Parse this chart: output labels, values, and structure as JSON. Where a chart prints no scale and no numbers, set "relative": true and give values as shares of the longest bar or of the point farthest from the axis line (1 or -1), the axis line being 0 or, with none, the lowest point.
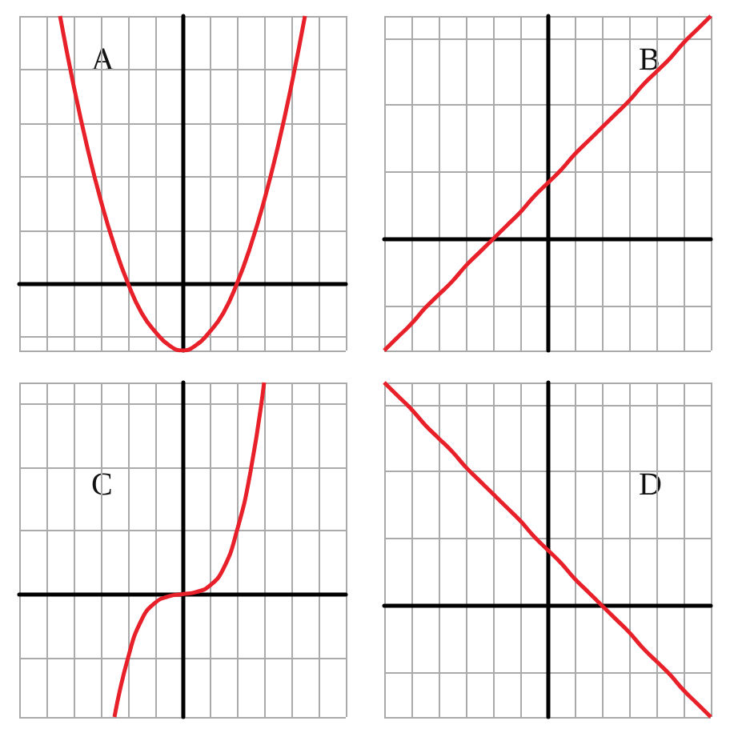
{
  "chart_data": [
    {
      "type": "line",
      "relative": true,
      "grid": true,
      "tick_labels": false,
      "marker": "none",
      "annotations": [
        "A"
      ],
      "categories": [
        null,
        null,
        null,
        null,
        null,
        null,
        null,
        null,
        null,
        null,
        null,
        null,
        null,
        null,
        null,
        null,
        null,
        null,
        null,
        null,
        null,
        null,
        null,
        null,
        null
      ],
      "series": [
        {
          "color": "#e8202a",
          "values": [
            null,
            null,
            null,
            1,
            0.74,
            0.51,
            0.31,
            0.14,
            0,
            -0.11,
            -0.18,
            -0.23,
            -0.25,
            -0.23,
            -0.18,
            -0.11,
            0,
            0.14,
            0.31,
            0.51,
            0.74,
            1,
            null,
            null,
            null
          ]
        }
      ]
    },
    {
      "type": "line",
      "relative": true,
      "grid": true,
      "tick_labels": false,
      "marker": "none",
      "annotations": [
        "B"
      ],
      "categories": [
        null,
        null,
        null,
        null,
        null,
        null,
        null,
        null,
        null,
        null,
        null,
        null,
        null,
        null,
        null,
        null,
        null,
        null,
        null,
        null,
        null,
        null,
        null,
        null,
        null
      ],
      "series": [
        {
          "color": "#e8202a",
          "values": [
            -0.5,
            -0.44,
            -0.38,
            -0.31,
            -0.25,
            -0.19,
            -0.12,
            -0.06,
            0,
            0.06,
            0.12,
            0.19,
            0.25,
            0.31,
            0.38,
            0.44,
            0.5,
            0.56,
            0.62,
            0.69,
            0.75,
            0.81,
            0.88,
            0.94,
            1
          ]
        }
      ]
    },
    {
      "type": "line",
      "relative": true,
      "grid": true,
      "tick_labels": false,
      "marker": "none",
      "annotations": [
        "C"
      ],
      "categories": [
        null,
        null,
        null,
        null,
        null,
        null,
        null,
        null,
        null,
        null,
        null,
        null,
        null,
        null,
        null,
        null,
        null,
        null,
        null,
        null,
        null,
        null,
        null,
        null,
        null
      ],
      "series": [
        {
          "color": "#e8202a",
          "values": [
            null,
            null,
            null,
            null,
            null,
            null,
            null,
            -0.58,
            -0.3,
            -0.12,
            -0.04,
            -0.01,
            0,
            0.01,
            0.04,
            0.12,
            0.3,
            0.58,
            1,
            null,
            null,
            null,
            null,
            null,
            null
          ]
        }
      ]
    },
    {
      "type": "line",
      "relative": true,
      "grid": true,
      "tick_labels": false,
      "marker": "none",
      "annotations": [
        "D"
      ],
      "categories": [
        null,
        null,
        null,
        null,
        null,
        null,
        null,
        null,
        null,
        null,
        null,
        null,
        null,
        null,
        null,
        null,
        null,
        null,
        null,
        null,
        null,
        null,
        null,
        null,
        null
      ],
      "series": [
        {
          "color": "#e8202a",
          "values": [
            1,
            0.94,
            0.88,
            0.81,
            0.75,
            0.69,
            0.62,
            0.56,
            0.5,
            0.44,
            0.38,
            0.31,
            0.25,
            0.19,
            0.12,
            0.06,
            0,
            -0.06,
            -0.12,
            -0.19,
            -0.25,
            -0.31,
            -0.38,
            -0.44,
            -0.5
          ]
        }
      ]
    }
  ]
}
